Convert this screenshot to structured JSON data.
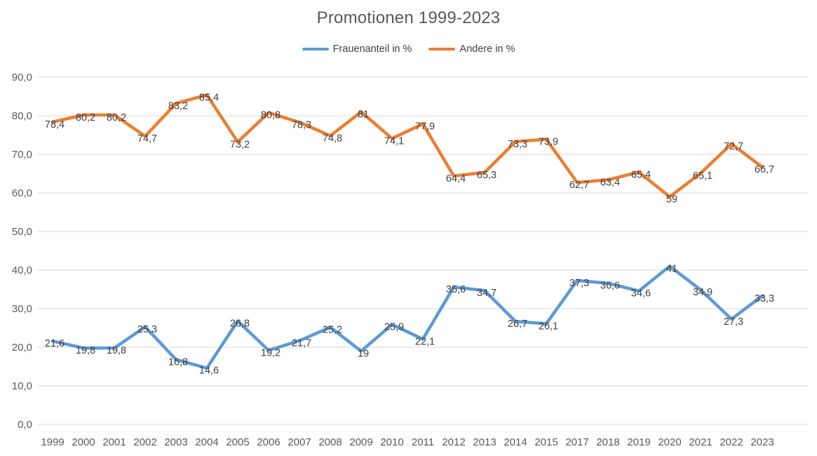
{
  "chart": {
    "colors": {
      "grid": "#D9D9D9",
      "axis_text": "#595959",
      "data_label_text": "#404040",
      "title_text": "#595959"
    }
  },
  "chart_data": {
    "type": "line",
    "title": "Promotionen 1999-2023",
    "categories": [
      "1999",
      "2000",
      "2001",
      "2002",
      "2003",
      "2004",
      "2005",
      "2006",
      "2007",
      "2008",
      "2009",
      "2010",
      "2011",
      "2012",
      "2013",
      "2014",
      "2015",
      "2017",
      "2018",
      "2019",
      "2020",
      "2021",
      "2022",
      "2023"
    ],
    "series": [
      {
        "name": "Frauenanteil in %",
        "color": "#5B9BD5",
        "values": [
          21.6,
          19.8,
          19.8,
          25.3,
          16.8,
          14.6,
          26.8,
          19.2,
          21.7,
          25.2,
          19,
          25.9,
          22.1,
          35.6,
          34.7,
          26.7,
          26.1,
          37.3,
          36.6,
          34.6,
          41,
          34.9,
          27.3,
          33.3
        ]
      },
      {
        "name": "Andere in %",
        "color": "#ED7D31",
        "values": [
          78.4,
          80.2,
          80.2,
          74.7,
          83.2,
          85.4,
          73.2,
          80.8,
          78.3,
          74.8,
          81,
          74.1,
          77.9,
          64.4,
          65.3,
          73.3,
          73.9,
          62.7,
          63.4,
          65.4,
          59,
          65.1,
          72.7,
          66.7
        ]
      }
    ],
    "ylim": [
      0,
      90
    ],
    "ytick_step": 10,
    "ytick_labels": [
      "0,0",
      "10,0",
      "20,0",
      "30,0",
      "40,0",
      "50,0",
      "60,0",
      "70,0",
      "80,0",
      "90,0"
    ],
    "grid": "horizontal",
    "legend_position": "top",
    "data_labels": "center",
    "decimal_separator": ","
  }
}
